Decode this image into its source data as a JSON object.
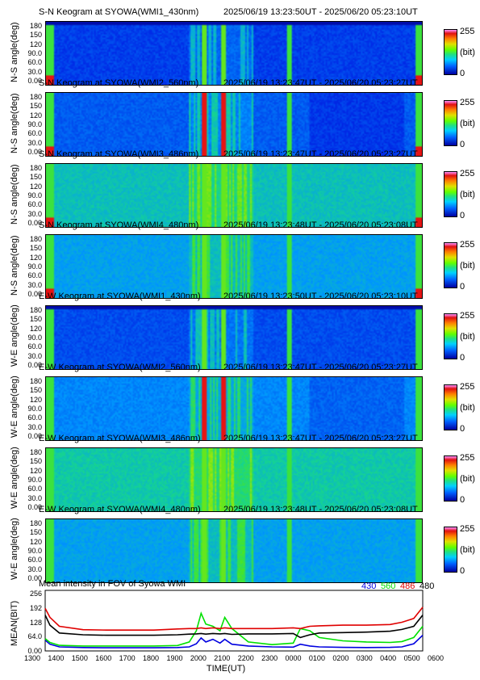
{
  "panels": [
    {
      "title": "S-N Keogram at SYOWA(WMI1_430nm)",
      "time_range": "2025/06/19 13:23:50UT - 2025/06/20 05:23:10UT",
      "ylabel": "N-S angle(deg)"
    },
    {
      "title": "S-N Keogram at SYOWA(WMI2_560nm)",
      "time_range": "2025/06/19 13:23:47UT - 2025/06/20 05:23:27UT",
      "ylabel": "N-S angle(deg)"
    },
    {
      "title": "S-N Keogram at SYOWA(WMI3_486nm)",
      "time_range": "2025/06/19 13:23:47UT - 2025/06/20 05:23:27UT",
      "ylabel": "N-S angle(deg)"
    },
    {
      "title": "S-N Keogram at SYOWA(WMI4_480nm)",
      "time_range": "2025/06/19 13:23:48UT - 2025/06/20 05:23:08UT",
      "ylabel": "N-S angle(deg)"
    },
    {
      "title": "E-W Keogram at SYOWA(WMI1_430nm)",
      "time_range": "2025/06/19 13:23:50UT - 2025/06/20 05:23:10UT",
      "ylabel": "W-E angle(deg)"
    },
    {
      "title": "E-W Keogram at SYOWA(WMI2_560nm)",
      "time_range": "2025/06/19 13:23:47UT - 2025/06/20 05:23:27UT",
      "ylabel": "W-E angle(deg)"
    },
    {
      "title": "E-W Keogram at SYOWA(WMI3_486nm)",
      "time_range": "2025/06/19 13:23:47UT - 2025/06/20 05:23:27UT",
      "ylabel": "W-E angle(deg)"
    },
    {
      "title": "E-W Keogram at SYOWA(WMI4_480nm)",
      "time_range": "2025/06/19 13:23:48UT - 2025/06/20 05:23:08UT",
      "ylabel": "W-E angle(deg)"
    }
  ],
  "keogram_yticks": [
    "0.00",
    "30.0",
    "60.0",
    "90.0",
    "120",
    "150",
    "180"
  ],
  "colorbar": {
    "max_label": "255",
    "unit_label": "(bit)",
    "min_label": "0"
  },
  "chart_data": {
    "type": "line",
    "title": "Mean intensity in FOV of Syowa WMI",
    "ylabel": "MEAN(BIT)",
    "xlabel": "TIME(UT)",
    "ylim": [
      0,
      256
    ],
    "yticks": [
      "0.00",
      "64.0",
      "128",
      "192",
      "256"
    ],
    "xticks": [
      "1300",
      "1400",
      "1500",
      "1600",
      "1700",
      "1800",
      "1900",
      "2000",
      "2100",
      "2200",
      "2300",
      "0000",
      "0100",
      "0200",
      "0300",
      "0400",
      "0500",
      "0600"
    ],
    "x_hours": [
      13.4,
      13.6,
      14,
      15,
      16,
      17,
      18,
      19,
      19.5,
      19.8,
      20.0,
      20.2,
      20.5,
      20.8,
      21.0,
      21.3,
      22,
      23,
      23.9,
      24.2,
      24.6,
      25,
      26,
      27,
      28,
      28.5,
      29.0,
      29.38
    ],
    "series": [
      {
        "name": "430",
        "color": "#0000e0",
        "values": [
          48,
          30,
          18,
          15,
          14,
          14,
          14,
          15,
          18,
          32,
          58,
          40,
          52,
          35,
          52,
          30,
          22,
          18,
          17,
          30,
          22,
          18,
          16,
          15,
          16,
          18,
          32,
          70
        ]
      },
      {
        "name": "560",
        "color": "#00e000",
        "values": [
          55,
          38,
          25,
          22,
          22,
          22,
          22,
          24,
          40,
          90,
          168,
          120,
          110,
          90,
          150,
          100,
          40,
          28,
          35,
          100,
          90,
          60,
          45,
          40,
          38,
          42,
          60,
          110
        ]
      },
      {
        "name": "486",
        "color": "#e00000",
        "values": [
          190,
          150,
          110,
          95,
          93,
          93,
          93,
          98,
          100,
          100,
          103,
          100,
          103,
          100,
          103,
          100,
          100,
          100,
          103,
          100,
          110,
          112,
          115,
          115,
          118,
          128,
          145,
          195
        ]
      },
      {
        "name": "480",
        "color": "#000000",
        "values": [
          160,
          115,
          80,
          72,
          70,
          70,
          70,
          72,
          75,
          76,
          78,
          75,
          78,
          76,
          78,
          74,
          76,
          76,
          78,
          60,
          72,
          80,
          82,
          84,
          88,
          96,
          110,
          160
        ]
      }
    ]
  }
}
